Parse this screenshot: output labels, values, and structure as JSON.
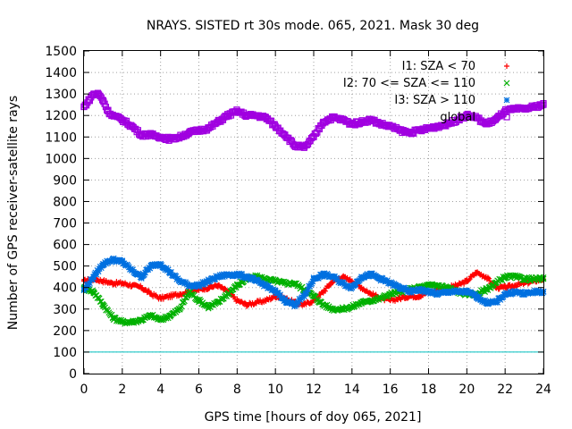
{
  "chart_data": {
    "type": "scatter",
    "title": "NRAYS. SISTED rt 30s mode. 065, 2021. Mask 30 deg",
    "xlabel": "GPS time [hours of doy 065, 2021]",
    "ylabel": "Number of GPS receiver-satellite rays",
    "xlim": [
      0,
      24
    ],
    "ylim": [
      0,
      1500
    ],
    "x_ticks": [
      0,
      2,
      4,
      6,
      8,
      10,
      12,
      14,
      16,
      18,
      20,
      22,
      24
    ],
    "y_ticks": [
      0,
      100,
      200,
      300,
      400,
      500,
      600,
      700,
      800,
      900,
      1000,
      1100,
      1200,
      1300,
      1400,
      1500
    ],
    "grid": true,
    "legend_position": "top-right",
    "threshold_line": {
      "y": 100,
      "color": "#00c0c0"
    },
    "series": [
      {
        "name": "I1: SZA < 70",
        "marker": "+",
        "color": "#ff0000",
        "x": [
          0,
          0.5,
          1,
          1.5,
          2,
          2.5,
          3,
          3.5,
          4,
          4.5,
          5,
          5.5,
          6,
          6.5,
          7,
          7.5,
          8,
          8.5,
          9,
          9.5,
          10,
          10.5,
          11,
          11.5,
          12,
          12.5,
          13,
          13.5,
          14,
          14.5,
          15,
          15.5,
          16,
          16.5,
          17,
          17.5,
          18,
          18.5,
          19,
          19.5,
          20,
          20.5,
          21,
          21.5,
          22,
          22.5,
          23,
          23.5,
          24
        ],
        "y": [
          430,
          440,
          430,
          420,
          420,
          410,
          400,
          370,
          350,
          360,
          370,
          380,
          390,
          400,
          410,
          380,
          340,
          320,
          330,
          340,
          360,
          350,
          330,
          320,
          340,
          380,
          430,
          450,
          430,
          400,
          370,
          350,
          340,
          350,
          360,
          360,
          380,
          390,
          400,
          410,
          430,
          470,
          450,
          400,
          400,
          410,
          420,
          430,
          440
        ]
      },
      {
        "name": "I2: 70 <= SZA <= 110",
        "marker": "x",
        "color": "#00b000",
        "x": [
          0,
          0.5,
          1,
          1.5,
          2,
          2.5,
          3,
          3.5,
          4,
          4.5,
          5,
          5.5,
          6,
          6.5,
          7,
          7.5,
          8,
          8.5,
          9,
          9.5,
          10,
          10.5,
          11,
          11.5,
          12,
          12.5,
          13,
          13.5,
          14,
          14.5,
          15,
          15.5,
          16,
          16.5,
          17,
          17.5,
          18,
          18.5,
          19,
          19.5,
          20,
          20.5,
          21,
          21.5,
          22,
          22.5,
          23,
          23.5,
          24
        ],
        "y": [
          400,
          380,
          320,
          260,
          240,
          240,
          250,
          270,
          250,
          270,
          300,
          380,
          340,
          310,
          330,
          370,
          410,
          440,
          450,
          440,
          430,
          420,
          420,
          390,
          360,
          320,
          300,
          300,
          310,
          330,
          340,
          350,
          370,
          380,
          390,
          400,
          410,
          410,
          400,
          380,
          370,
          370,
          390,
          420,
          450,
          450,
          440,
          440,
          440
        ]
      },
      {
        "name": "I3: SZA > 110",
        "marker": "*",
        "color": "#0070e0",
        "x": [
          0,
          0.5,
          1,
          1.5,
          2,
          2.5,
          3,
          3.5,
          4,
          4.5,
          5,
          5.5,
          6,
          6.5,
          7,
          7.5,
          8,
          8.5,
          9,
          9.5,
          10,
          10.5,
          11,
          11.5,
          12,
          12.5,
          13,
          13.5,
          14,
          14.5,
          15,
          15.5,
          16,
          16.5,
          17,
          17.5,
          18,
          18.5,
          19,
          19.5,
          20,
          20.5,
          21,
          21.5,
          22,
          22.5,
          23,
          23.5,
          24
        ],
        "y": [
          390,
          450,
          510,
          530,
          520,
          480,
          450,
          500,
          510,
          470,
          430,
          410,
          410,
          430,
          450,
          460,
          460,
          450,
          430,
          410,
          380,
          340,
          320,
          360,
          440,
          460,
          450,
          420,
          400,
          450,
          460,
          440,
          420,
          400,
          380,
          390,
          380,
          370,
          380,
          380,
          380,
          360,
          330,
          330,
          370,
          380,
          370,
          380,
          380
        ]
      },
      {
        "name": "global",
        "marker": "square",
        "color": "#a000e0",
        "x": [
          0,
          0.25,
          0.5,
          0.75,
          1,
          1.25,
          1.5,
          2,
          2.5,
          3,
          3.5,
          4,
          4.5,
          5,
          5.5,
          6,
          6.5,
          7,
          7.5,
          8,
          8.5,
          9,
          9.5,
          10,
          10.5,
          11,
          11.5,
          12,
          12.5,
          13,
          13.5,
          14,
          14.5,
          15,
          15.5,
          16,
          16.5,
          17,
          17.5,
          18,
          18.5,
          19,
          19.5,
          20,
          20.5,
          21,
          21.5,
          22,
          22.5,
          23,
          23.5,
          24
        ],
        "y": [
          1240,
          1270,
          1300,
          1300,
          1270,
          1220,
          1200,
          1180,
          1150,
          1110,
          1110,
          1100,
          1090,
          1100,
          1120,
          1130,
          1140,
          1170,
          1200,
          1220,
          1200,
          1200,
          1190,
          1150,
          1110,
          1060,
          1050,
          1100,
          1170,
          1190,
          1180,
          1160,
          1170,
          1180,
          1160,
          1150,
          1130,
          1120,
          1130,
          1140,
          1150,
          1160,
          1180,
          1200,
          1190,
          1160,
          1180,
          1220,
          1230,
          1230,
          1240,
          1250
        ]
      }
    ]
  }
}
